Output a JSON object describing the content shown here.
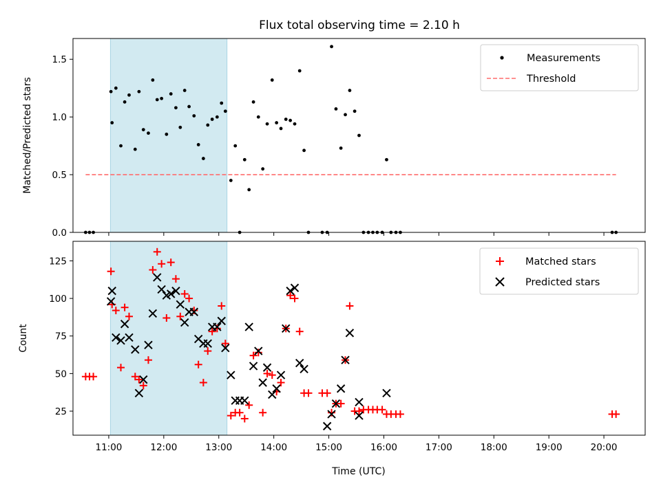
{
  "chart_data": [
    {
      "type": "scatter",
      "title": "Flux total observing time = 2.10 h",
      "xlabel": "",
      "ylabel": "Matched/Predicted stars",
      "xlim": [
        10.35,
        20.75
      ],
      "ylim": [
        0,
        1.68
      ],
      "yticks": [
        0.0,
        0.5,
        1.0,
        1.5
      ],
      "ytick_labels": [
        "0.0",
        "0.5",
        "1.0",
        "1.5"
      ],
      "shaded_region_hours": [
        11.03,
        13.15
      ],
      "shaded_color": "#add8e6",
      "legend_position": "top-right",
      "series": [
        {
          "name": "Measurements",
          "color": "#000000",
          "marker": "dot",
          "x": [
            10.58,
            10.65,
            10.72,
            11.04,
            11.06,
            11.13,
            11.22,
            11.29,
            11.37,
            11.48,
            11.55,
            11.63,
            11.72,
            11.8,
            11.88,
            11.96,
            12.05,
            12.13,
            12.22,
            12.3,
            12.38,
            12.46,
            12.55,
            12.63,
            12.72,
            12.8,
            12.88,
            12.97,
            13.05,
            13.12,
            13.22,
            13.3,
            13.38,
            13.47,
            13.55,
            13.63,
            13.72,
            13.8,
            13.88,
            13.97,
            14.05,
            14.13,
            14.22,
            14.3,
            14.38,
            14.47,
            14.55,
            14.63,
            14.88,
            14.97,
            15.05,
            15.13,
            15.22,
            15.3,
            15.38,
            15.47,
            15.55,
            15.63,
            15.72,
            15.8,
            15.88,
            15.97,
            16.05,
            16.13,
            16.22,
            16.3,
            20.15,
            20.22
          ],
          "y": [
            0,
            0,
            0,
            1.22,
            0.95,
            1.25,
            0.75,
            1.13,
            1.19,
            0.72,
            1.22,
            0.89,
            0.86,
            1.32,
            1.15,
            1.16,
            0.85,
            1.2,
            1.08,
            0.91,
            1.23,
            1.09,
            1.01,
            0.76,
            0.64,
            0.93,
            0.98,
            1.0,
            1.12,
            1.05,
            0.45,
            0.75,
            0,
            0.63,
            0.37,
            1.13,
            1.0,
            0.55,
            0.94,
            1.32,
            0.95,
            0.9,
            0.98,
            0.97,
            0.94,
            1.4,
            0.71,
            0,
            0,
            0,
            1.61,
            1.07,
            0.73,
            1.02,
            1.23,
            1.05,
            0.84,
            0,
            0,
            0,
            0,
            0,
            0.63,
            0,
            0,
            0,
            0,
            0
          ]
        },
        {
          "name": "Threshold",
          "color": "#ff6b6b",
          "style": "dashed",
          "x": [
            10.58,
            20.22
          ],
          "y": [
            0.5,
            0.5
          ]
        }
      ]
    },
    {
      "type": "scatter",
      "title": "",
      "xlabel": "Time (UTC)",
      "ylabel": "Count",
      "xlim": [
        10.35,
        20.75
      ],
      "ylim": [
        9,
        138
      ],
      "yticks": [
        25,
        50,
        75,
        100,
        125
      ],
      "ytick_labels": [
        "25",
        "50",
        "75",
        "100",
        "125"
      ],
      "xticks": [
        11,
        12,
        13,
        14,
        15,
        16,
        17,
        18,
        19,
        20
      ],
      "xtick_labels": [
        "11:00",
        "12:00",
        "13:00",
        "14:00",
        "15:00",
        "16:00",
        "17:00",
        "18:00",
        "19:00",
        "20:00"
      ],
      "shaded_region_hours": [
        11.03,
        13.15
      ],
      "shaded_color": "#add8e6",
      "legend_position": "top-right",
      "series": [
        {
          "name": "Matched stars",
          "color": "#ff0000",
          "marker": "plus",
          "x": [
            10.58,
            10.65,
            10.72,
            11.04,
            11.06,
            11.13,
            11.22,
            11.29,
            11.37,
            11.48,
            11.55,
            11.63,
            11.72,
            11.8,
            11.88,
            11.96,
            12.05,
            12.13,
            12.22,
            12.3,
            12.38,
            12.46,
            12.55,
            12.63,
            12.72,
            12.8,
            12.88,
            12.97,
            13.05,
            13.12,
            13.22,
            13.3,
            13.38,
            13.47,
            13.55,
            13.63,
            13.72,
            13.8,
            13.88,
            13.97,
            14.05,
            14.13,
            14.22,
            14.3,
            14.38,
            14.47,
            14.55,
            14.63,
            14.88,
            14.97,
            15.05,
            15.13,
            15.22,
            15.3,
            15.38,
            15.47,
            15.55,
            15.63,
            15.72,
            15.8,
            15.88,
            15.97,
            16.05,
            16.13,
            16.22,
            16.3,
            20.15,
            20.22
          ],
          "y": [
            48,
            48,
            48,
            118,
            96,
            92,
            54,
            94,
            88,
            48,
            46,
            42,
            59,
            119,
            131,
            123,
            87,
            124,
            113,
            88,
            103,
            100,
            92,
            56,
            44,
            65,
            78,
            80,
            95,
            70,
            22,
            24,
            24,
            20,
            29,
            62,
            64,
            24,
            50,
            49,
            38,
            44,
            80,
            102,
            100,
            78,
            37,
            37,
            37,
            37,
            24,
            30,
            30,
            59,
            95,
            25,
            25,
            26,
            26,
            26,
            26,
            26,
            23,
            23,
            23,
            23,
            23,
            23
          ]
        },
        {
          "name": "Predicted stars",
          "color": "#000000",
          "marker": "x",
          "x": [
            11.04,
            11.06,
            11.13,
            11.22,
            11.29,
            11.37,
            11.48,
            11.55,
            11.63,
            11.72,
            11.8,
            11.88,
            11.96,
            12.05,
            12.13,
            12.22,
            12.3,
            12.38,
            12.46,
            12.55,
            12.63,
            12.72,
            12.8,
            12.88,
            12.97,
            13.05,
            13.12,
            13.22,
            13.3,
            13.38,
            13.47,
            13.55,
            13.63,
            13.72,
            13.8,
            13.88,
            13.97,
            14.05,
            14.13,
            14.22,
            14.3,
            14.38,
            14.47,
            14.55,
            14.97,
            15.05,
            15.13,
            15.22,
            15.3,
            15.38,
            15.55,
            15.55,
            16.05
          ],
          "y": [
            98,
            105,
            74,
            72,
            83,
            74,
            66,
            37,
            46,
            69,
            90,
            114,
            106,
            102,
            103,
            105,
            96,
            84,
            91,
            91,
            73,
            70,
            70,
            81,
            81,
            85,
            67,
            49,
            32,
            32,
            32,
            81,
            55,
            65,
            44,
            54,
            36,
            40,
            49,
            80,
            105,
            107,
            57,
            53,
            15,
            23,
            30,
            40,
            59,
            77,
            22,
            31,
            37
          ]
        }
      ]
    }
  ]
}
